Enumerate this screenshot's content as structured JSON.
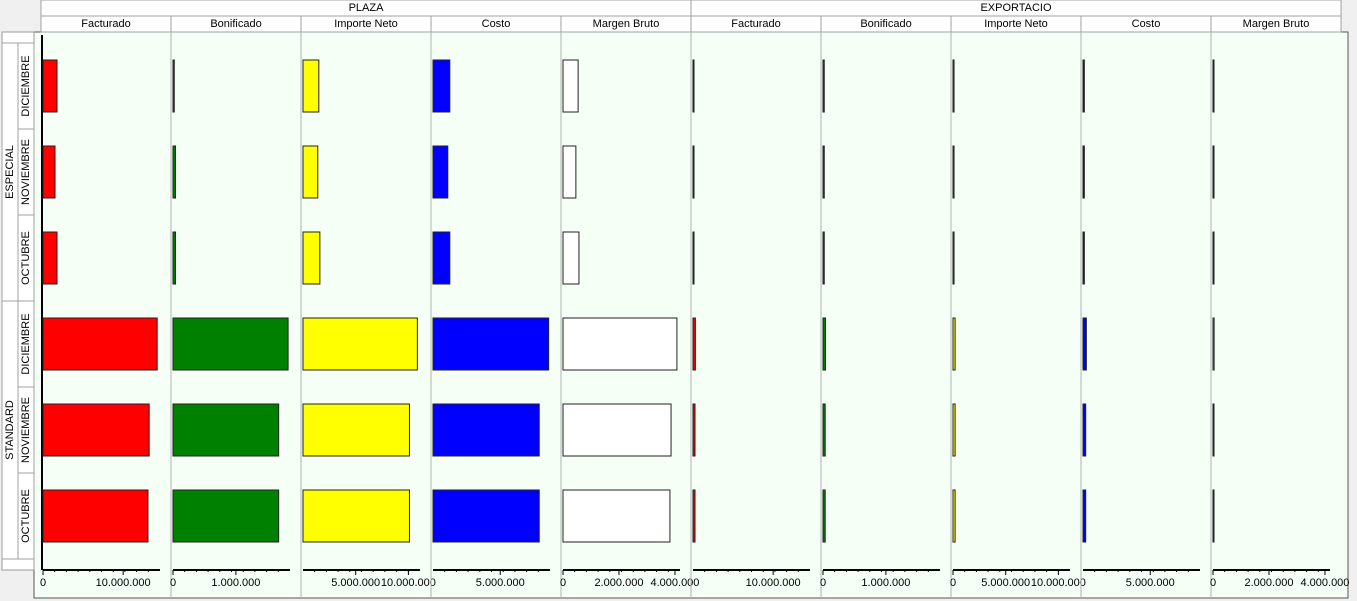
{
  "chart_data": {
    "type": "bar",
    "row_groups": [
      {
        "name": "ESPECIAL",
        "categories": [
          "DICIEMBRE",
          "NOVIEMBRE",
          "OCTUBRE"
        ]
      },
      {
        "name": "STANDARD",
        "categories": [
          "DICIEMBRE",
          "NOVIEMBRE",
          "OCTUBRE"
        ]
      }
    ],
    "groups": [
      {
        "name": "PLAZA",
        "series": [
          {
            "name": "Facturado",
            "color": "#ff0000",
            "xlim": [
              0,
              14600000
            ],
            "xticks": [
              0,
              {
                "value": 10000000,
                "label": "10.000.000"
              }
            ],
            "values": [
              [
                1750000,
                1500000,
                1750000
              ],
              [
                14250000,
                13250000,
                13100000
              ]
            ]
          },
          {
            "name": "Bonificado",
            "color": "#008000",
            "xlim": [
              0,
              1860000
            ],
            "xticks": [
              0,
              {
                "value": 1000000,
                "label": "1.000.000"
              }
            ],
            "values": [
              [
                20000,
                40000,
                40000
              ],
              [
                1830000,
                1680000,
                1680000
              ]
            ]
          },
          {
            "name": "Importe Neto",
            "color": "#ffff00",
            "xlim": [
              0,
              11100000
            ],
            "xticks": [
              {
                "value": 5000000,
                "label": "5.000.000"
              },
              {
                "value": 10000000,
                "label": "10.000.000"
              }
            ],
            "values": [
              [
                1500000,
                1400000,
                1600000
              ],
              [
                10850000,
                10100000,
                10100000
              ]
            ]
          },
          {
            "name": "Costo",
            "color": "#0000ff",
            "xlim": [
              0,
              8700000
            ],
            "xticks": [
              {
                "value": 5000000,
                "label": "5.000.000"
              }
            ],
            "values": [
              [
                1250000,
                1100000,
                1250000
              ],
              [
                8600000,
                7900000,
                7900000
              ]
            ]
          },
          {
            "name": "Margen Bruto",
            "color": "#ffffff",
            "xlim": [
              0,
              4180000
            ],
            "xticks": [
              0,
              {
                "value": 2000000,
                "label": "2.000.000"
              },
              {
                "value": 4000000,
                "label": "4.000.000"
              }
            ],
            "values": [
              [
                540000,
                460000,
                570000
              ],
              [
                4070000,
                3860000,
                3820000
              ]
            ]
          }
        ]
      },
      {
        "name": "EXPORTACIO",
        "series": [
          {
            "name": "Facturado",
            "color": "#ff0000",
            "xlim": [
              0,
              14600000
            ],
            "xticks": [
              {
                "value": 10000000,
                "label": "10.000.000"
              }
            ],
            "values": [
              [
                100000,
                100000,
                100000
              ],
              [
                300000,
                250000,
                250000
              ]
            ]
          },
          {
            "name": "Bonificado",
            "color": "#008000",
            "xlim": [
              0,
              1860000
            ],
            "xticks": [
              0,
              {
                "value": 1000000,
                "label": "1.000.000"
              }
            ],
            "values": [
              [
                20000,
                20000,
                20000
              ],
              [
                40000,
                35000,
                35000
              ]
            ]
          },
          {
            "name": "Importe Neto",
            "color": "#ffff00",
            "xlim": [
              0,
              11100000
            ],
            "xticks": [
              0,
              {
                "value": 5000000,
                "label": "5.000.000"
              },
              {
                "value": 10000000,
                "label": "10.000.000"
              }
            ],
            "values": [
              [
                100000,
                100000,
                100000
              ],
              [
                200000,
                200000,
                200000
              ]
            ]
          },
          {
            "name": "Costo",
            "color": "#0000ff",
            "xlim": [
              0,
              8700000
            ],
            "xticks": [
              {
                "value": 5000000,
                "label": "5.000.000"
              }
            ],
            "values": [
              [
                100000,
                100000,
                100000
              ],
              [
                250000,
                200000,
                200000
              ]
            ]
          },
          {
            "name": "Margen Bruto",
            "color": "#ffffff",
            "xlim": [
              0,
              4180000
            ],
            "xticks": [
              0,
              {
                "value": 2000000,
                "label": "2.000.000"
              },
              {
                "value": 4000000,
                "label": "4.000.000"
              }
            ],
            "values": [
              [
                10000,
                10000,
                10000
              ],
              [
                40000,
                10000,
                30000
              ]
            ]
          }
        ]
      }
    ]
  }
}
